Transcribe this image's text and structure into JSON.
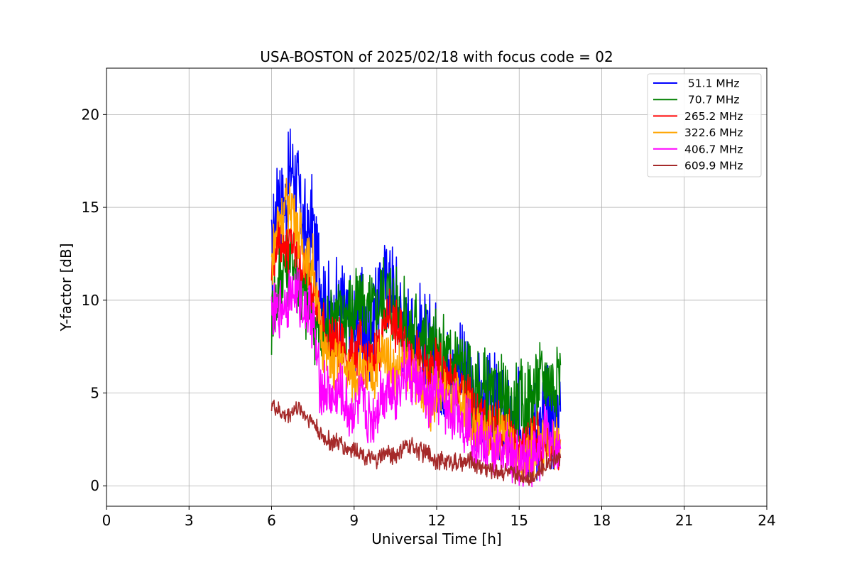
{
  "chart_data": {
    "type": "line",
    "title": "USA-BOSTON of 2025/02/18 with focus code = 02",
    "xlabel": "Universal Time [h]",
    "ylabel": "Y-factor [dB]",
    "xlim": [
      0,
      24
    ],
    "ylim": [
      -1.1,
      22.5
    ],
    "xticks": [
      0,
      3,
      6,
      9,
      12,
      15,
      18,
      21,
      24
    ],
    "yticks": [
      0,
      5,
      10,
      15,
      20
    ],
    "grid": true,
    "legend_position": "top-right",
    "series": [
      {
        "name": " 51.1 MHz",
        "color": "#0000ff",
        "x": [
          6.0,
          6.25,
          6.5,
          6.75,
          7.0,
          7.25,
          7.5,
          7.75,
          8.0,
          8.25,
          8.5,
          8.75,
          9.0,
          9.25,
          9.5,
          9.75,
          10.0,
          10.25,
          10.5,
          10.75,
          11.0,
          11.25,
          11.5,
          11.75,
          12.0,
          12.25,
          12.5,
          12.75,
          13.0,
          13.25,
          13.5,
          13.75,
          14.0,
          14.25,
          14.5,
          14.75,
          15.0,
          15.25,
          15.5,
          15.75,
          16.0,
          16.25,
          16.5
        ],
        "y": [
          12.0,
          16.5,
          15.0,
          17.5,
          15.5,
          13.5,
          14.0,
          11.5,
          9.5,
          9.0,
          10.0,
          9.0,
          8.5,
          9.0,
          8.0,
          9.5,
          10.5,
          11.5,
          10.0,
          9.0,
          8.5,
          8.5,
          8.0,
          7.5,
          7.0,
          6.5,
          6.0,
          6.5,
          5.5,
          5.0,
          4.5,
          4.0,
          4.5,
          4.0,
          3.5,
          3.0,
          3.5,
          3.0,
          3.5,
          3.0,
          4.0,
          3.5,
          4.0
        ]
      },
      {
        "name": " 70.7 MHz",
        "color": "#008000",
        "x": [
          6.0,
          6.25,
          6.5,
          6.75,
          7.0,
          7.25,
          7.5,
          7.75,
          8.0,
          8.25,
          8.5,
          8.75,
          9.0,
          9.25,
          9.5,
          9.75,
          10.0,
          10.25,
          10.5,
          10.75,
          11.0,
          11.25,
          11.5,
          11.75,
          12.0,
          12.25,
          12.5,
          12.75,
          13.0,
          13.25,
          13.5,
          13.75,
          14.0,
          14.25,
          14.5,
          14.75,
          15.0,
          15.25,
          15.5,
          15.75,
          16.0,
          16.25,
          16.5
        ],
        "y": [
          9.0,
          11.0,
          12.0,
          12.5,
          11.0,
          10.0,
          9.5,
          8.0,
          8.5,
          9.5,
          9.0,
          9.5,
          9.0,
          10.0,
          9.0,
          9.5,
          10.0,
          10.5,
          9.5,
          9.0,
          8.0,
          8.5,
          8.0,
          7.5,
          7.0,
          7.0,
          6.5,
          7.0,
          6.0,
          5.5,
          5.0,
          5.0,
          4.5,
          5.0,
          4.0,
          4.0,
          4.5,
          4.0,
          5.0,
          5.5,
          6.0,
          5.5,
          6.5
        ]
      },
      {
        "name": "265.2 MHz",
        "color": "#ff0000",
        "x": [
          6.0,
          6.25,
          6.5,
          6.75,
          7.0,
          7.25,
          7.5,
          7.75,
          8.0,
          8.25,
          8.5,
          8.75,
          9.0,
          9.25,
          9.5,
          9.75,
          10.0,
          10.25,
          10.5,
          10.75,
          11.0,
          11.25,
          11.5,
          11.75,
          12.0,
          12.25,
          12.5,
          12.75,
          13.0,
          13.25,
          13.5,
          13.75,
          14.0,
          14.25,
          14.5,
          14.75,
          15.0,
          15.25,
          15.5,
          15.75,
          16.0,
          16.25,
          16.5
        ],
        "y": [
          11.5,
          13.5,
          13.0,
          13.0,
          12.0,
          11.5,
          11.0,
          9.0,
          8.0,
          7.5,
          7.5,
          7.0,
          7.0,
          7.5,
          6.5,
          7.0,
          8.0,
          9.5,
          8.5,
          8.0,
          7.5,
          7.0,
          6.5,
          6.0,
          6.5,
          6.0,
          5.5,
          5.5,
          5.0,
          4.5,
          4.0,
          3.5,
          3.5,
          3.0,
          3.0,
          2.5,
          2.0,
          2.0,
          2.5,
          2.5,
          2.0,
          2.0,
          2.0
        ]
      },
      {
        "name": "322.6 MHz",
        "color": "#ffa500",
        "x": [
          6.0,
          6.25,
          6.5,
          6.75,
          7.0,
          7.25,
          7.5,
          7.75,
          8.0,
          8.25,
          8.5,
          8.75,
          9.0,
          9.25,
          9.5,
          9.75,
          10.0,
          10.25,
          10.5,
          10.75,
          11.0,
          11.25,
          11.5,
          11.75,
          12.0,
          12.25,
          12.5,
          12.75,
          13.0,
          13.25,
          13.5,
          13.75,
          14.0,
          14.25,
          14.5,
          14.75,
          15.0,
          15.25,
          15.5,
          15.75,
          16.0,
          16.25,
          16.5
        ],
        "y": [
          12.0,
          14.5,
          15.0,
          15.5,
          13.5,
          12.5,
          12.0,
          8.5,
          7.0,
          6.5,
          7.0,
          6.0,
          6.0,
          6.5,
          5.5,
          6.0,
          7.0,
          7.0,
          6.0,
          6.5,
          6.0,
          5.5,
          5.0,
          4.5,
          5.0,
          5.0,
          4.5,
          4.5,
          4.0,
          3.5,
          3.0,
          3.0,
          2.5,
          2.5,
          2.5,
          2.0,
          1.5,
          1.5,
          2.0,
          2.5,
          2.5,
          2.5,
          2.5
        ]
      },
      {
        "name": "406.7 MHz",
        "color": "#ff00ff",
        "x": [
          6.0,
          6.25,
          6.5,
          6.75,
          7.0,
          7.25,
          7.5,
          7.75,
          8.0,
          8.25,
          8.5,
          8.75,
          9.0,
          9.25,
          9.5,
          9.75,
          10.0,
          10.25,
          10.5,
          10.75,
          11.0,
          11.25,
          11.5,
          11.75,
          12.0,
          12.25,
          12.5,
          12.75,
          13.0,
          13.25,
          13.5,
          13.75,
          14.0,
          14.25,
          14.5,
          14.75,
          15.0,
          15.25,
          15.5,
          15.75,
          16.0,
          16.25,
          16.5
        ],
        "y": [
          9.0,
          9.5,
          10.0,
          10.5,
          10.0,
          9.5,
          9.0,
          5.5,
          5.0,
          4.5,
          5.0,
          4.0,
          4.0,
          4.5,
          3.5,
          4.0,
          5.0,
          5.5,
          5.0,
          6.0,
          6.0,
          5.5,
          5.0,
          4.5,
          5.0,
          4.5,
          4.0,
          4.0,
          3.5,
          3.0,
          2.5,
          2.0,
          2.0,
          2.0,
          2.0,
          1.5,
          1.5,
          1.5,
          1.5,
          2.0,
          3.0,
          2.0,
          2.0
        ]
      },
      {
        "name": "609.9 MHz",
        "color": "#a52a2a",
        "x": [
          6.0,
          6.25,
          6.5,
          6.75,
          7.0,
          7.25,
          7.5,
          7.75,
          8.0,
          8.25,
          8.5,
          8.75,
          9.0,
          9.25,
          9.5,
          9.75,
          10.0,
          10.25,
          10.5,
          10.75,
          11.0,
          11.25,
          11.5,
          11.75,
          12.0,
          12.25,
          12.5,
          12.75,
          13.0,
          13.25,
          13.5,
          13.75,
          14.0,
          14.25,
          14.5,
          14.75,
          15.0,
          15.25,
          15.5,
          15.75,
          16.0,
          16.25,
          16.5
        ],
        "y": [
          4.5,
          4.0,
          3.8,
          4.0,
          4.2,
          3.8,
          3.5,
          2.8,
          2.5,
          2.3,
          2.3,
          2.0,
          2.0,
          1.8,
          1.5,
          1.3,
          1.6,
          1.8,
          1.6,
          2.0,
          2.2,
          2.0,
          1.8,
          1.6,
          1.4,
          1.3,
          1.4,
          1.2,
          1.2,
          1.3,
          1.1,
          1.0,
          0.9,
          0.8,
          0.8,
          0.6,
          0.5,
          0.5,
          0.5,
          0.8,
          1.2,
          1.5,
          1.5
        ]
      }
    ]
  }
}
